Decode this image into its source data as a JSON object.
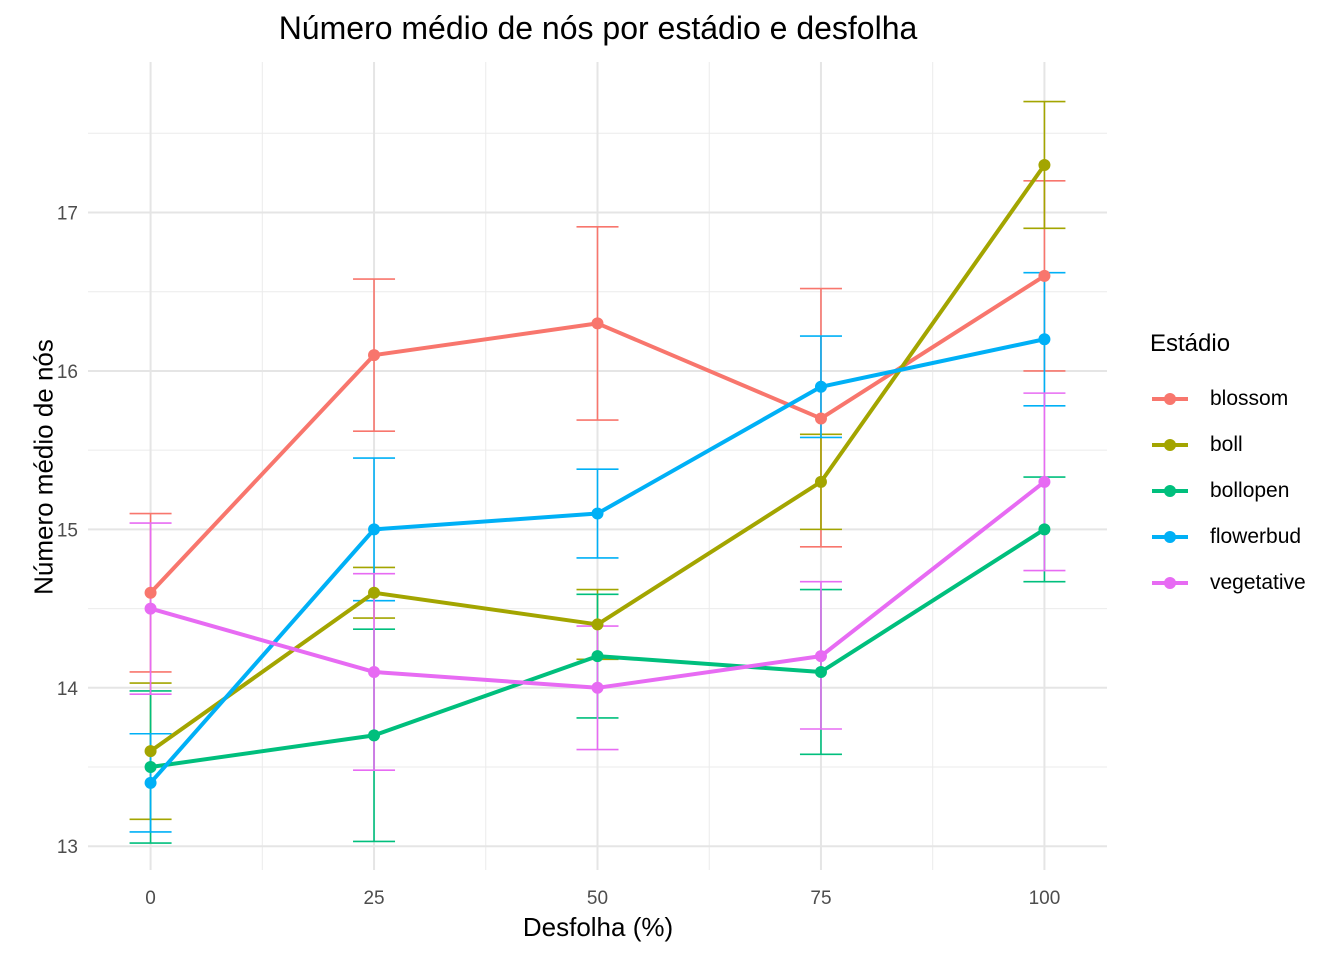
{
  "chart_data": {
    "type": "line",
    "title": "Número médio de nós por estádio e desfolha",
    "xlabel": "Desfolha (%)",
    "ylabel": "Número médio de nós",
    "x": [
      0,
      25,
      50,
      75,
      100
    ],
    "xlim": [
      -7,
      107
    ],
    "ylim": [
      12.85,
      17.95
    ],
    "x_ticks": [
      0,
      25,
      50,
      75,
      100
    ],
    "y_ticks": [
      13,
      14,
      15,
      16,
      17
    ],
    "grid": true,
    "legend_title": "Estádio",
    "legend_position": "right",
    "series": [
      {
        "name": "blossom",
        "color": "#F8766D",
        "values": [
          14.6,
          16.1,
          16.3,
          15.7,
          16.6
        ],
        "err_low": [
          14.1,
          15.62,
          15.69,
          14.89,
          16.0
        ],
        "err_high": [
          15.1,
          16.58,
          16.91,
          16.52,
          17.2
        ]
      },
      {
        "name": "boll",
        "color": "#A3A500",
        "values": [
          13.6,
          14.6,
          14.4,
          15.3,
          17.3
        ],
        "err_low": [
          13.17,
          14.44,
          14.18,
          15.0,
          16.9
        ],
        "err_high": [
          14.03,
          14.76,
          14.62,
          15.6,
          17.7
        ]
      },
      {
        "name": "bollopen",
        "color": "#00BF7D",
        "values": [
          13.5,
          13.7,
          14.2,
          14.1,
          15.0
        ],
        "err_low": [
          13.02,
          13.03,
          13.81,
          13.58,
          14.67
        ],
        "err_high": [
          13.98,
          14.37,
          14.59,
          14.62,
          15.33
        ]
      },
      {
        "name": "flowerbud",
        "color": "#00B0F6",
        "values": [
          13.4,
          15.0,
          15.1,
          15.9,
          16.2
        ],
        "err_low": [
          13.09,
          14.55,
          14.82,
          15.58,
          15.78
        ],
        "err_high": [
          13.71,
          15.45,
          15.38,
          16.22,
          16.62
        ]
      },
      {
        "name": "vegetative",
        "color": "#E76BF3",
        "values": [
          14.5,
          14.1,
          14.0,
          14.2,
          15.3
        ],
        "err_low": [
          13.96,
          13.48,
          13.61,
          13.74,
          14.74
        ],
        "err_high": [
          15.04,
          14.72,
          14.39,
          14.67,
          15.86
        ]
      }
    ]
  }
}
